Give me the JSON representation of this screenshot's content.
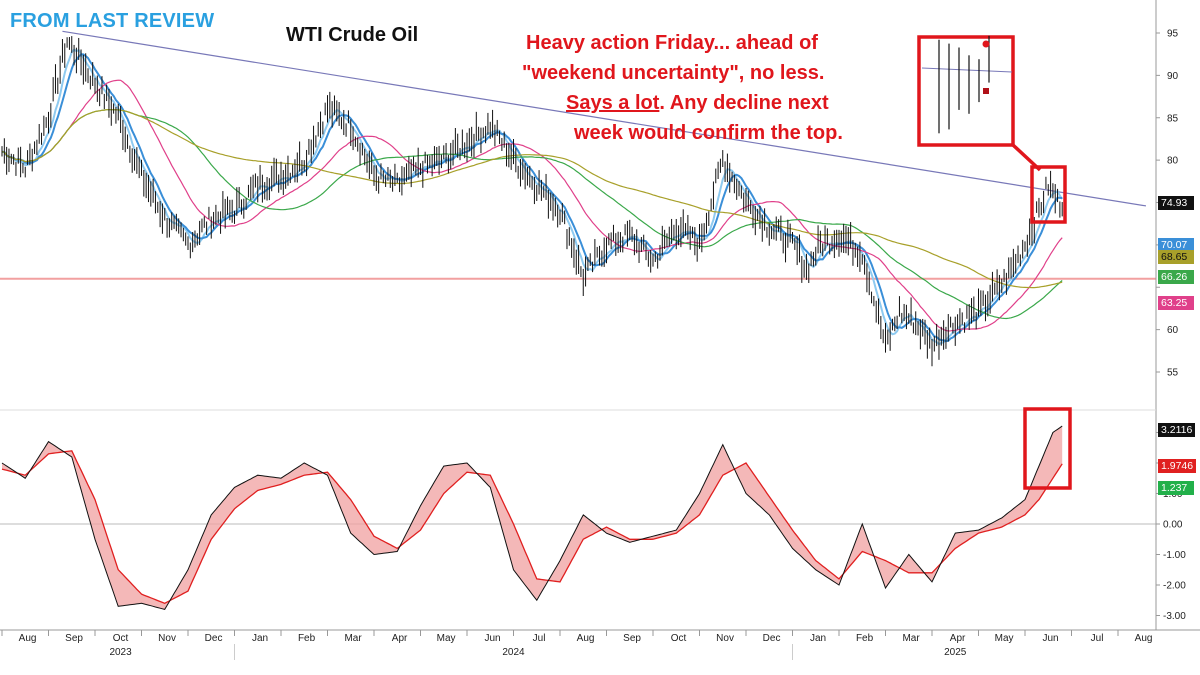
{
  "header": {
    "tag_text": "FROM LAST REVIEW",
    "title": "WTI Crude Oil"
  },
  "annotation": {
    "line1": "Heavy action Friday... ahead of",
    "line2": "\"weekend uncertainty\", no less.",
    "line3_underlined": "Says a lot",
    "line3_rest": ". Any decline next",
    "line4": "week would confirm the top."
  },
  "colors": {
    "header_tag": "#2aa0e0",
    "annotation": "#e0161c",
    "price_bars": "#111111",
    "trendline": "#7878b8",
    "support_line": "#f2a0a0",
    "ma_fast_1": "#3a8fd8",
    "ma_fast_2": "#8ecaf0",
    "ma_50": "#e0408a",
    "ma_100": "#3aa84a",
    "ma_200": "#a8a02a",
    "osc_fast": "#111111",
    "osc_slow": "#e02020",
    "osc_fill": "#f0a0a0"
  },
  "chart_data": {
    "type": "line",
    "title": "WTI Crude Oil",
    "price_axis": {
      "ticks": [
        55,
        60,
        65,
        70,
        75,
        80,
        85,
        90,
        95
      ],
      "tick_labels": [
        "55",
        "60",
        "",
        "70",
        "75",
        "80",
        "85",
        "90",
        "95"
      ],
      "ylim": [
        51,
        99
      ]
    },
    "oscillator_axis": {
      "ticks": [
        -3,
        -2,
        -1,
        0,
        1,
        2,
        3
      ],
      "tick_labels": [
        "-3.00",
        "-2.00",
        "-1.00",
        "0.00",
        "1.00",
        "2.00",
        "3.00"
      ],
      "ylim": [
        -3.4,
        4.3
      ]
    },
    "time_axis": {
      "months": [
        "Aug",
        "Sep",
        "Oct",
        "Nov",
        "Dec",
        "Jan",
        "Feb",
        "Mar",
        "Apr",
        "May",
        "Jun",
        "Jul",
        "Aug",
        "Sep",
        "Oct",
        "Nov",
        "Dec",
        "Jan",
        "Feb",
        "Mar",
        "Apr",
        "May",
        "Jun",
        "Jul",
        "Aug"
      ],
      "years": [
        "2023",
        "2024",
        "2025"
      ]
    },
    "price_series": {
      "name": "WTI close",
      "x_month_index": [
        0,
        0.5,
        1,
        1.4,
        2,
        2.5,
        3,
        3.5,
        4,
        4.5,
        5,
        5.5,
        6,
        6.5,
        7,
        7.5,
        8,
        8.5,
        9,
        9.5,
        10,
        10.5,
        11,
        11.5,
        12,
        12.5,
        13,
        13.5,
        14,
        14.5,
        15,
        15.5,
        16,
        16.5,
        17,
        17.3,
        17.6,
        18,
        18.5,
        19,
        19.3,
        19.6,
        20,
        20.3,
        20.6,
        21,
        21.3,
        21.6,
        22,
        22.3,
        22.5,
        22.7,
        22.8
      ],
      "values": [
        81,
        79,
        85,
        94,
        89,
        85,
        78,
        73,
        70,
        73,
        74,
        77,
        78,
        80,
        86,
        84,
        78,
        77,
        79,
        80,
        82,
        84,
        80,
        77,
        74,
        66,
        70,
        71,
        68,
        72,
        70,
        80,
        75,
        72,
        70,
        67,
        70,
        71,
        69,
        58,
        62,
        61,
        58,
        60,
        61,
        62,
        64,
        66,
        70,
        74,
        77,
        75,
        74.93
      ]
    },
    "moving_averages": [
      {
        "name": "",
        "last_value": 70.07,
        "label_color": "#3a8fd8"
      },
      {
        "name": "",
        "last_value": 68.65,
        "label_color": "#a8a02a"
      },
      {
        "name": "",
        "last_value": 66.26,
        "label_color": "#3aa84a"
      },
      {
        "name": "",
        "last_value": 63.25,
        "label_color": "#e0408a"
      }
    ],
    "trendline": {
      "start": {
        "x_month_index": 1.3,
        "y": 95.2
      },
      "end": {
        "x_month_index": 24.6,
        "y": 74.6
      }
    },
    "support_level": 66,
    "oscillator": {
      "x_month_index": [
        0,
        0.5,
        1,
        1.5,
        2,
        2.5,
        3,
        3.5,
        4,
        4.5,
        5,
        5.5,
        6,
        6.5,
        7,
        7.5,
        8,
        8.5,
        9,
        9.5,
        10,
        10.5,
        11,
        11.5,
        12,
        12.5,
        13,
        13.5,
        14,
        14.5,
        15,
        15.5,
        16,
        16.5,
        17,
        17.5,
        18,
        18.5,
        19,
        19.5,
        20,
        20.5,
        21,
        21.5,
        22,
        22.3,
        22.6,
        22.8
      ],
      "fast": [
        2.0,
        1.5,
        2.7,
        2.2,
        -0.5,
        -2.7,
        -2.6,
        -2.8,
        -1.5,
        0.3,
        1.2,
        1.6,
        1.5,
        2.0,
        1.6,
        -0.3,
        -1.0,
        -0.9,
        0.6,
        1.9,
        2.0,
        1.2,
        -1.5,
        -2.5,
        -1.2,
        0.3,
        -0.3,
        -0.6,
        -0.4,
        -0.2,
        1.0,
        2.6,
        1.0,
        0.3,
        -0.8,
        -1.5,
        -2.0,
        0.0,
        -2.1,
        -1.0,
        -1.9,
        -0.3,
        -0.2,
        0.2,
        0.8,
        1.9,
        3.0,
        3.2116
      ],
      "slow": [
        1.8,
        1.6,
        2.3,
        2.4,
        0.8,
        -1.5,
        -2.3,
        -2.6,
        -2.2,
        -0.5,
        0.5,
        1.1,
        1.3,
        1.6,
        1.7,
        0.8,
        -0.4,
        -0.8,
        -0.2,
        1.0,
        1.7,
        1.6,
        0.0,
        -1.8,
        -1.9,
        -0.5,
        -0.1,
        -0.5,
        -0.5,
        -0.3,
        0.3,
        1.6,
        2.0,
        0.9,
        -0.2,
        -1.2,
        -1.8,
        -0.9,
        -1.2,
        -1.6,
        -1.6,
        -0.8,
        -0.3,
        -0.1,
        0.3,
        0.8,
        1.5,
        1.9746
      ],
      "last_fast": 3.2116,
      "last_slow": 1.9746,
      "third_label": 1.237
    },
    "value_labels": {
      "last_price": "74.93",
      "ma_a": "70.07",
      "ma_b": "68.65",
      "ma_c": "66.26",
      "ma_d": "63.25",
      "osc_fast": "3.2116",
      "osc_slow": "1.9746",
      "osc_third": "1.237"
    },
    "inset": {
      "description_words": "",
      "bars_high": [
        93.5,
        93.0,
        92.5,
        91.5,
        91.0,
        94.0
      ],
      "bars_low": [
        81.5,
        82.0,
        84.5,
        84.0,
        85.5,
        88.0
      ]
    },
    "grid": false,
    "legend": "none"
  }
}
